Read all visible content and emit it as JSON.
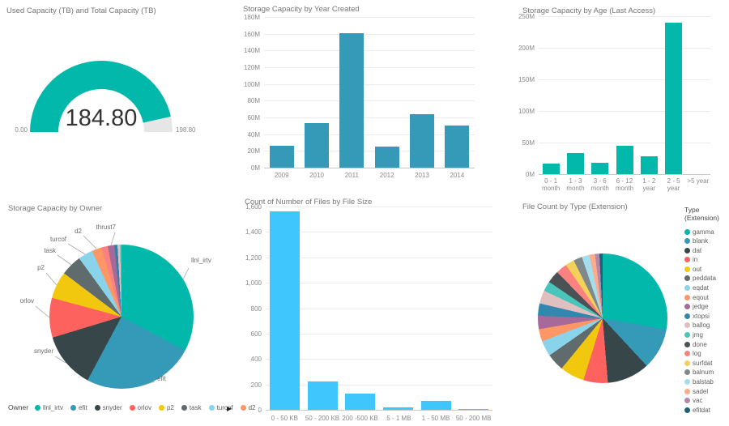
{
  "chart_data": [
    {
      "id": "gauge",
      "type": "gauge",
      "title": "Used Capacity (TB) and Total Capacity (TB)",
      "value": 184.8,
      "min": 0,
      "max": 198.8,
      "value_label": "184.80",
      "min_label": "0.00",
      "max_label": "198.80",
      "color": "#01B8AA",
      "track_color": "#E6E6E6"
    },
    {
      "id": "year",
      "type": "bar",
      "title": "Storage Capacity by Year Created",
      "categories": [
        "2009",
        "2010",
        "2011",
        "2012",
        "2013",
        "2014"
      ],
      "values": [
        26,
        53,
        161,
        25,
        64,
        50
      ],
      "unit": "M",
      "ylim": [
        0,
        180
      ],
      "ystep": 20,
      "color": "#3599B8",
      "grid": true,
      "legend": "none"
    },
    {
      "id": "age",
      "type": "bar",
      "title": "Storage Capacity by Age (Last Access)",
      "categories": [
        "0 - 1\nmonth",
        "1 - 3\nmonth",
        "3 - 6\nmonth",
        "6 - 12\nmonth",
        "1 - 2\nyear",
        "2 - 5\nyear",
        ">5 year"
      ],
      "values": [
        17,
        33,
        18,
        45,
        28,
        240,
        0
      ],
      "unit": "M",
      "ylim": [
        0,
        250
      ],
      "ystep": 50,
      "color": "#01B8AA",
      "grid": true,
      "legend": "none"
    },
    {
      "id": "owner",
      "type": "pie",
      "title": "Storage Capacity by Owner",
      "legend_title": "Owner",
      "legend_more_arrow": "▶",
      "legend_visible_count": 8,
      "slices": [
        {
          "label": "llnl_irtv",
          "value": 32.8,
          "color": "#01B8AA"
        },
        {
          "label": "efit",
          "value": 25.0,
          "color": "#3599B8"
        },
        {
          "label": "snyder",
          "value": 12.5,
          "color": "#374649"
        },
        {
          "label": "orlov",
          "value": 8.9,
          "color": "#FD625E"
        },
        {
          "label": "p2",
          "value": 6.1,
          "color": "#F2C80F"
        },
        {
          "label": "task",
          "value": 4.7,
          "color": "#5F6B6D"
        },
        {
          "label": "turcof",
          "value": 3.3,
          "color": "#8AD4EB"
        },
        {
          "label": "d2",
          "value": 2.2,
          "color": "#FE9666"
        },
        {
          "label": "",
          "value": 1.4,
          "color": "#FB8281"
        },
        {
          "label": "thrust7",
          "value": 1.5,
          "color": "#A66999"
        },
        {
          "label": "",
          "value": 0.7,
          "color": "#3080A8"
        },
        {
          "label": "",
          "value": 0.6,
          "color": "#DFBFBF"
        },
        {
          "label": "",
          "value": 0.3,
          "color": "#4AC5BB"
        }
      ]
    },
    {
      "id": "size",
      "type": "bar",
      "title": "Count of Number of Files by File Size",
      "categories": [
        "0 - 50 KB",
        "50 - 200 KB",
        "200 -500 KB",
        ".5 - 1 MB",
        "1 - 50 MB",
        "50 - 200 MB"
      ],
      "values": [
        1560,
        220,
        130,
        20,
        68,
        8
      ],
      "unit": "",
      "ylim": [
        0,
        1600
      ],
      "ystep": 200,
      "color": "#3FC6FC",
      "grid": true,
      "legend": "none"
    },
    {
      "id": "type",
      "type": "pie",
      "title": "File Count by Type (Extension)",
      "legend_title": "Type (Extension)",
      "legend_position": "right",
      "slices": [
        {
          "label": "gamma",
          "value": 27.8,
          "color": "#01B8AA"
        },
        {
          "label": "blank",
          "value": 10.3,
          "color": "#3599B8"
        },
        {
          "label": "dat",
          "value": 10.6,
          "color": "#374649"
        },
        {
          "label": "in",
          "value": 6.1,
          "color": "#FD625E"
        },
        {
          "label": "out",
          "value": 6.1,
          "color": "#F2C80F"
        },
        {
          "label": "peddata",
          "value": 4.4,
          "color": "#5F6B6D"
        },
        {
          "label": "eqdat",
          "value": 3.9,
          "color": "#8AD4EB"
        },
        {
          "label": "eqout",
          "value": 3.1,
          "color": "#FE9666"
        },
        {
          "label": "jedge",
          "value": 3.3,
          "color": "#A66999"
        },
        {
          "label": "xtopsi",
          "value": 3.1,
          "color": "#3187AE"
        },
        {
          "label": "ballog",
          "value": 3.3,
          "color": "#DFBFBF"
        },
        {
          "label": "jmg",
          "value": 2.5,
          "color": "#4AC5BB"
        },
        {
          "label": "done",
          "value": 3.1,
          "color": "#4A5255"
        },
        {
          "label": "log",
          "value": 2.8,
          "color": "#FB8281"
        },
        {
          "label": "surfdat",
          "value": 2.2,
          "color": "#F4D25A"
        },
        {
          "label": "balnum",
          "value": 2.2,
          "color": "#7F898A"
        },
        {
          "label": "balstab",
          "value": 1.9,
          "color": "#A4DDEE"
        },
        {
          "label": "sadel",
          "value": 1.4,
          "color": "#FDAB89"
        },
        {
          "label": "vac",
          "value": 1.1,
          "color": "#B687AC"
        },
        {
          "label": "efitdat",
          "value": 0.8,
          "color": "#226077"
        }
      ]
    }
  ]
}
